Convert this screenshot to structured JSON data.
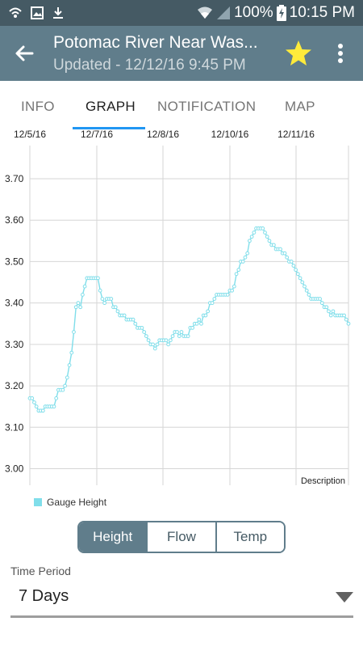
{
  "status_bar": {
    "battery": "100%",
    "time": "10:15 PM",
    "icons": [
      "wifi-icon",
      "image-icon",
      "download-icon",
      "wifi-signal-icon",
      "cell-signal-icon",
      "battery-charging-icon"
    ]
  },
  "app_bar": {
    "title": "Potomac River Near Was...",
    "subtitle": "Updated - 12/12/16 9:45 PM",
    "star_color": "#ffeb3b"
  },
  "tabs": [
    {
      "label": "INFO",
      "active": false
    },
    {
      "label": "GRAPH",
      "active": true
    },
    {
      "label": "NOTIFICATION",
      "active": false
    },
    {
      "label": "MAP",
      "active": false
    }
  ],
  "chart_data": {
    "type": "scatter",
    "x_ticks": [
      "12/5/16",
      "12/7/16",
      "12/8/16",
      "12/10/16",
      "12/11/16"
    ],
    "y_ticks": [
      "3.00",
      "3.10",
      "3.20",
      "3.30",
      "3.40",
      "3.50",
      "3.60",
      "3.70"
    ],
    "ylim": [
      2.96,
      3.78
    ],
    "description": "Description",
    "series": [
      {
        "name": "Gauge Height",
        "color": "#80deea",
        "values": [
          3.17,
          3.17,
          3.16,
          3.15,
          3.14,
          3.14,
          3.14,
          3.15,
          3.15,
          3.15,
          3.15,
          3.15,
          3.17,
          3.19,
          3.19,
          3.19,
          3.2,
          3.22,
          3.25,
          3.28,
          3.33,
          3.39,
          3.4,
          3.39,
          3.42,
          3.44,
          3.46,
          3.46,
          3.46,
          3.46,
          3.46,
          3.46,
          3.43,
          3.41,
          3.4,
          3.41,
          3.41,
          3.41,
          3.39,
          3.39,
          3.38,
          3.37,
          3.37,
          3.37,
          3.36,
          3.36,
          3.36,
          3.36,
          3.35,
          3.34,
          3.34,
          3.34,
          3.33,
          3.32,
          3.31,
          3.3,
          3.3,
          3.29,
          3.3,
          3.31,
          3.31,
          3.31,
          3.31,
          3.3,
          3.31,
          3.32,
          3.33,
          3.33,
          3.32,
          3.33,
          3.32,
          3.32,
          3.32,
          3.34,
          3.34,
          3.35,
          3.35,
          3.36,
          3.35,
          3.37,
          3.37,
          3.38,
          3.4,
          3.4,
          3.41,
          3.42,
          3.42,
          3.42,
          3.42,
          3.42,
          3.42,
          3.43,
          3.43,
          3.44,
          3.47,
          3.48,
          3.5,
          3.5,
          3.51,
          3.52,
          3.55,
          3.56,
          3.57,
          3.58,
          3.58,
          3.58,
          3.58,
          3.57,
          3.56,
          3.55,
          3.54,
          3.54,
          3.53,
          3.53,
          3.53,
          3.52,
          3.52,
          3.51,
          3.5,
          3.5,
          3.49,
          3.48,
          3.47,
          3.46,
          3.45,
          3.44,
          3.43,
          3.42,
          3.41,
          3.41,
          3.41,
          3.41,
          3.41,
          3.4,
          3.39,
          3.39,
          3.38,
          3.37,
          3.38,
          3.37,
          3.37,
          3.37,
          3.37,
          3.37,
          3.36,
          3.35
        ]
      }
    ]
  },
  "legend": {
    "label": "Gauge Height"
  },
  "segmented": [
    {
      "label": "Height",
      "active": true
    },
    {
      "label": "Flow",
      "active": false
    },
    {
      "label": "Temp",
      "active": false
    }
  ],
  "time_period": {
    "label": "Time Period",
    "value": "7 Days"
  }
}
